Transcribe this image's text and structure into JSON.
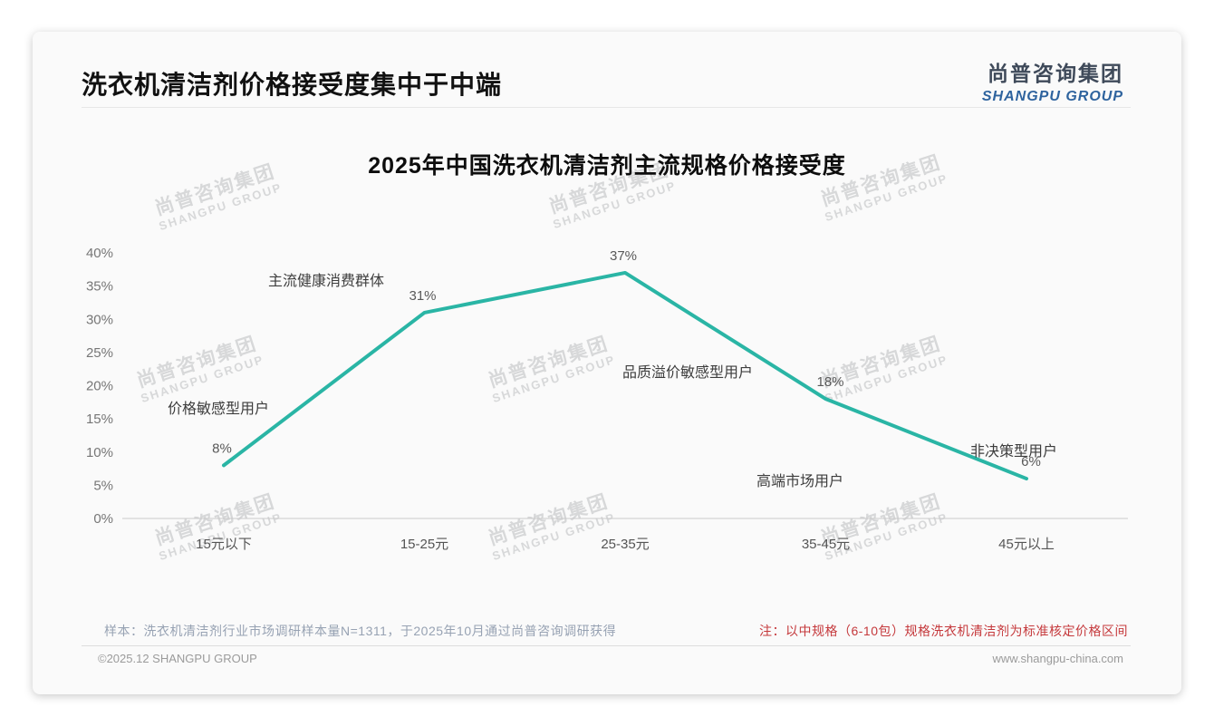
{
  "header": {
    "title": "洗衣机清洁剂价格接受度集中于中端"
  },
  "logo": {
    "chinese": "尚普咨询集团",
    "english": "SHANGPU GROUP"
  },
  "watermark": {
    "line1": "尚普咨询集团",
    "line2": "SHANGPU GROUP"
  },
  "chart_data": {
    "type": "line",
    "title": "2025年中国洗衣机清洁剂主流规格价格接受度",
    "categories": [
      "15元以下",
      "15-25元",
      "25-35元",
      "35-45元",
      "45元以上"
    ],
    "values": [
      8,
      31,
      37,
      18,
      6
    ],
    "value_labels": [
      "8%",
      "31%",
      "37%",
      "18%",
      "6%"
    ],
    "yticks": [
      "0%",
      "5%",
      "10%",
      "15%",
      "20%",
      "25%",
      "30%",
      "35%",
      "40%"
    ],
    "ylim": [
      0,
      40
    ],
    "grid": false,
    "legend": "none",
    "line_color": "#2ab5a5",
    "annotations": [
      {
        "text": "价格敏感型用户"
      },
      {
        "text": "主流健康消费群体"
      },
      {
        "text": "品质溢价敏感型用户"
      },
      {
        "text": "高端市场用户"
      },
      {
        "text": "非决策型用户"
      }
    ]
  },
  "footer": {
    "sample_note": "样本：洗衣机清洁剂行业市场调研样本量N=1311，于2025年10月通过尚普咨询调研获得",
    "red_note": "注：以中规格（6-10包）规格洗衣机清洁剂为标准核定价格区间",
    "copyright": "©2025.12 SHANGPU GROUP",
    "website": "www.shangpu-china.com"
  }
}
